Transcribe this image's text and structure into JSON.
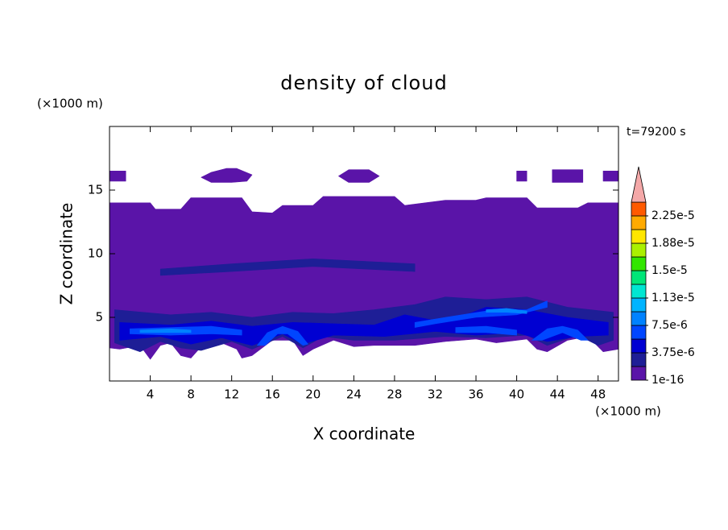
{
  "chart_data": {
    "type": "contour",
    "title": "density of cloud",
    "xlabel": "X coordinate",
    "ylabel": "Z coordinate",
    "xunit": "(×1000 m)",
    "yunit": "(×1000 m)",
    "annotation": "t=79200 s",
    "xlim": [
      0,
      50
    ],
    "ylim": [
      0,
      20
    ],
    "xticks": [
      4,
      8,
      12,
      16,
      20,
      24,
      28,
      32,
      36,
      40,
      44,
      48
    ],
    "yticks": [
      5,
      10,
      15
    ],
    "colorbar": {
      "levels": [
        1e-16,
        1.875e-06,
        3.75e-06,
        5.625e-06,
        7.5e-06,
        9.375e-06,
        1.125e-05,
        1.3125e-05,
        1.5e-05,
        1.6875e-05,
        1.875e-05,
        2.0625e-05,
        2.25e-05,
        2.4375e-05
      ],
      "ticks": [
        {
          "value": 1e-16,
          "label": "1e-16"
        },
        {
          "value": 3.75e-06,
          "label": "3.75e-6"
        },
        {
          "value": 7.5e-06,
          "label": "7.5e-6"
        },
        {
          "value": 1.125e-05,
          "label": "1.13e-5"
        },
        {
          "value": 1.5e-05,
          "label": "1.5e-5"
        },
        {
          "value": 1.875e-05,
          "label": "1.88e-5"
        },
        {
          "value": 2.25e-05,
          "label": "2.25e-5"
        }
      ],
      "colors": [
        "#5a14a8",
        "#1e1e96",
        "#0000d2",
        "#0046ff",
        "#0082ff",
        "#00b4ff",
        "#00e6d2",
        "#00e678",
        "#32e600",
        "#aaf000",
        "#ffe600",
        "#ffaa00",
        "#ff5a00"
      ],
      "extend_color": "#f4a8a8"
    },
    "regions": [
      {
        "value": 1e-16,
        "x": [
          0,
          4,
          4.5,
          7,
          8,
          13,
          14,
          16,
          17,
          20,
          21,
          28,
          29,
          31,
          33,
          36,
          37,
          41,
          42,
          46,
          47,
          50,
          50,
          48.5,
          47,
          45,
          43,
          42,
          41,
          38,
          36,
          33,
          30,
          26,
          24,
          22,
          20,
          19,
          18,
          16,
          14,
          13,
          12.5,
          11,
          9,
          8,
          7,
          6,
          5,
          4,
          3,
          1,
          0
        ],
        "z": [
          14,
          14,
          13.5,
          13.5,
          14.4,
          14.4,
          13.3,
          13.2,
          13.8,
          13.8,
          14.5,
          14.5,
          13.8,
          14,
          14.2,
          14.2,
          14.4,
          14.4,
          13.6,
          13.6,
          14,
          14,
          2.5,
          2.3,
          3.5,
          3.2,
          2.3,
          2.5,
          3.3,
          3,
          3.3,
          3.1,
          2.8,
          2.8,
          2.7,
          3.2,
          2.5,
          2,
          3.2,
          3.2,
          2,
          1.8,
          2.5,
          3,
          2.7,
          1.8,
          2,
          3,
          2.8,
          1.7,
          2.8,
          2.5,
          2.6
        ]
      },
      {
        "value": 1e-16,
        "x": [
          0,
          1.6,
          1.6,
          0
        ],
        "z": [
          16.5,
          16.5,
          15.7,
          15.7
        ]
      },
      {
        "value": 1e-16,
        "x": [
          9,
          10,
          11.5,
          12.5,
          14,
          13.5,
          12,
          10,
          9
        ],
        "z": [
          16,
          16.4,
          16.7,
          16.7,
          16.2,
          15.7,
          15.6,
          15.6,
          16
        ]
      },
      {
        "value": 1e-16,
        "x": [
          22.5,
          23.5,
          25.5,
          26.5,
          25.5,
          23.5,
          22.5
        ],
        "z": [
          16.1,
          16.6,
          16.6,
          16.1,
          15.6,
          15.6,
          16.1
        ]
      },
      {
        "value": 1e-16,
        "x": [
          40,
          41,
          41,
          40
        ],
        "z": [
          16.5,
          16.5,
          15.7,
          15.7
        ]
      },
      {
        "value": 1e-16,
        "x": [
          43.5,
          46.5,
          46.5,
          43.5
        ],
        "z": [
          16.6,
          16.6,
          15.6,
          15.6
        ]
      },
      {
        "value": 1e-16,
        "x": [
          48.5,
          50,
          50,
          48.5
        ],
        "z": [
          16.5,
          16.5,
          15.7,
          15.7
        ]
      },
      {
        "value": 1.875e-06,
        "x": [
          0.5,
          6,
          10,
          14,
          18,
          22,
          26,
          30,
          33,
          37,
          41,
          45,
          49.5,
          49.5,
          48,
          46,
          43,
          41,
          37,
          33,
          28,
          24,
          21,
          19,
          17,
          14,
          12,
          9,
          7,
          5,
          3,
          0.5
        ],
        "z": [
          5.6,
          5.2,
          5.4,
          5,
          5.4,
          5.3,
          5.6,
          6,
          6.6,
          6.4,
          6.6,
          5.8,
          5.4,
          3.2,
          2.8,
          3.6,
          2.8,
          3.6,
          3.4,
          3.5,
          3.2,
          3.2,
          3.5,
          2.6,
          3.5,
          2.5,
          3.1,
          2.4,
          2.6,
          3.1,
          2.3,
          3
        ]
      },
      {
        "value": 1.875e-06,
        "x": [
          5,
          12,
          20,
          30,
          30,
          20,
          12,
          5
        ],
        "z": [
          8.8,
          9.2,
          9.6,
          9.2,
          8.6,
          9,
          8.6,
          8.3
        ]
      },
      {
        "value": 3.75e-06,
        "x": [
          1,
          6,
          10,
          14,
          18,
          22,
          26,
          29,
          33,
          37,
          41,
          45,
          49,
          49,
          46,
          43,
          40,
          36,
          32,
          27,
          22,
          19,
          17,
          14,
          11,
          8,
          5,
          1
        ],
        "z": [
          4.6,
          4.4,
          4.7,
          4.3,
          4.6,
          4.5,
          4.4,
          5.2,
          4.6,
          5.8,
          5.6,
          5,
          4.6,
          3.6,
          3.5,
          3.1,
          3.8,
          3.6,
          3.9,
          3.5,
          3.6,
          2.9,
          3.7,
          2.8,
          3.4,
          2.9,
          3.5,
          3.2
        ]
      },
      {
        "value": 5.625e-06,
        "x": [
          2,
          6,
          10,
          13,
          13,
          10,
          6,
          2
        ],
        "z": [
          4.1,
          4.2,
          4.3,
          4.0,
          3.6,
          3.7,
          3.6,
          3.7
        ]
      },
      {
        "value": 5.625e-06,
        "x": [
          14.5,
          15.5,
          17,
          18.5,
          19.5,
          19,
          17.5,
          16.5,
          15.3
        ],
        "z": [
          2.8,
          3.8,
          4.3,
          3.9,
          2.9,
          2.8,
          3.7,
          3.7,
          2.8
        ]
      },
      {
        "value": 5.625e-06,
        "x": [
          34,
          37,
          40,
          40,
          37,
          34
        ],
        "z": [
          4.2,
          4.3,
          4.0,
          3.6,
          3.8,
          3.8
        ]
      },
      {
        "value": 5.625e-06,
        "x": [
          41.5,
          43,
          44.5,
          46,
          47,
          46.3,
          44.5,
          42.5
        ],
        "z": [
          3.2,
          4.1,
          4.3,
          4,
          3.2,
          3.2,
          3.8,
          3.2
        ]
      },
      {
        "value": 5.625e-06,
        "x": [
          30,
          33,
          37,
          41,
          43,
          43,
          40,
          36,
          32,
          30
        ],
        "z": [
          4.6,
          5,
          5.5,
          5.6,
          6.3,
          5.8,
          5.2,
          5,
          4.5,
          4.2
        ]
      },
      {
        "value": 7.5e-06,
        "x": [
          3,
          6,
          8,
          8,
          6,
          3
        ],
        "z": [
          4.0,
          4.1,
          4.0,
          3.8,
          3.8,
          3.8
        ]
      },
      {
        "value": 7.5e-06,
        "x": [
          37,
          39,
          41,
          41,
          39,
          37
        ],
        "z": [
          5.6,
          5.7,
          5.5,
          5.3,
          5.4,
          5.4
        ]
      }
    ]
  }
}
